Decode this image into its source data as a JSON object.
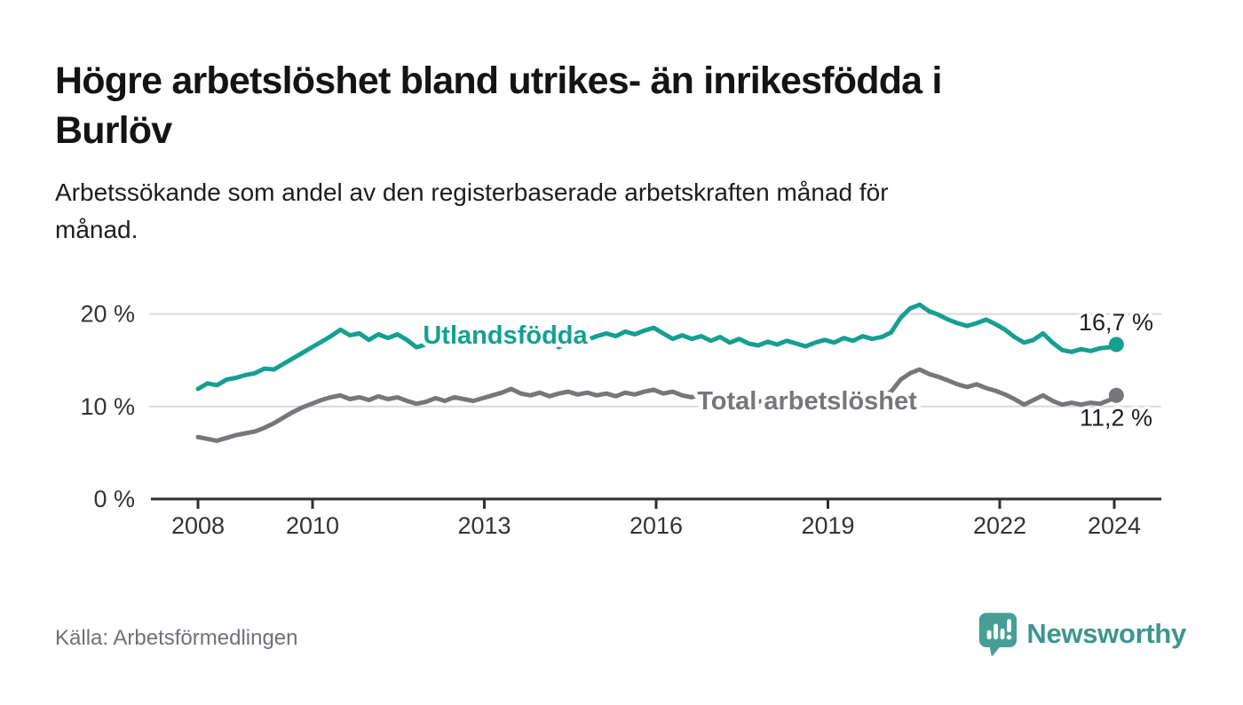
{
  "header": {
    "title_lines": [
      "Högre arbetslöshet bland utrikes- än inrikesfödda i",
      "Burlöv"
    ],
    "subtitle_lines": [
      "Arbetssökande som andel av den registerbaserade arbetskraften månad för",
      "månad."
    ]
  },
  "footer": {
    "source": "Källa: Arbetsförmedlingen",
    "brand": "Newsworthy",
    "brand_color": "#3b968e",
    "logo_icon": "speech-bubble-bar-chart-icon"
  },
  "colors": {
    "foreign_born_line": "#14a091",
    "total_line": "#76777a",
    "gridline": "#d9d9d9",
    "axis": "#2f2f2f",
    "tick_label": "#333333",
    "end_label": "#1d1d1d"
  },
  "chart_data": {
    "type": "line",
    "title": "Högre arbetslöshet bland utrikes- än inrikesfödda i Burlöv",
    "subtitle": "Arbetssökande som andel av den registerbaserade arbetskraften månad för månad.",
    "xlabel": "",
    "ylabel": "",
    "x_range": [
      2008.0,
      2024.083
    ],
    "x_ticks": [
      2008,
      2010,
      2013,
      2016,
      2019,
      2022,
      2024
    ],
    "y_ticks": [
      0,
      10,
      20
    ],
    "y_tick_suffix": " %",
    "ylim": [
      0,
      22
    ],
    "grid": "horizontal",
    "legend_position": "inline-labels",
    "series": [
      {
        "name": "Utlandsfödda",
        "color": "#14a091",
        "end_value": 16.7,
        "end_label": "16,7 %",
        "values": [
          11.9,
          12.5,
          12.3,
          12.9,
          13.1,
          13.4,
          13.6,
          14.1,
          14.0,
          14.6,
          15.2,
          15.8,
          16.4,
          17.0,
          17.6,
          18.3,
          17.7,
          17.9,
          17.2,
          17.8,
          17.4,
          17.8,
          17.2,
          16.4,
          16.7,
          17.4,
          17.1,
          17.7,
          17.9,
          17.5,
          17.8,
          17.5,
          18.0,
          17.6,
          17.9,
          17.4,
          17.6,
          17.1,
          16.4,
          16.9,
          17.4,
          17.2,
          17.6,
          17.9,
          17.6,
          18.1,
          17.8,
          18.2,
          18.5,
          17.9,
          17.3,
          17.7,
          17.3,
          17.6,
          17.1,
          17.5,
          16.9,
          17.3,
          16.8,
          16.6,
          17.0,
          16.7,
          17.1,
          16.8,
          16.5,
          16.9,
          17.2,
          16.9,
          17.4,
          17.1,
          17.6,
          17.3,
          17.5,
          18.0,
          19.6,
          20.6,
          21.0,
          20.3,
          19.9,
          19.4,
          19.0,
          18.7,
          19.0,
          19.4,
          18.9,
          18.3,
          17.5,
          16.9,
          17.2,
          17.9,
          16.9,
          16.1,
          15.9,
          16.2,
          16.0,
          16.3,
          16.4,
          16.7
        ]
      },
      {
        "name": "Total arbetslöshet",
        "color": "#76777a",
        "end_value": 11.2,
        "end_label": "11,2 %",
        "values": [
          6.7,
          6.5,
          6.3,
          6.6,
          6.9,
          7.1,
          7.3,
          7.7,
          8.2,
          8.8,
          9.4,
          9.9,
          10.3,
          10.7,
          11.0,
          11.2,
          10.8,
          11.0,
          10.7,
          11.1,
          10.8,
          11.0,
          10.6,
          10.3,
          10.5,
          10.9,
          10.6,
          11.0,
          10.8,
          10.6,
          10.9,
          11.2,
          11.5,
          11.9,
          11.4,
          11.2,
          11.5,
          11.1,
          11.4,
          11.6,
          11.3,
          11.5,
          11.2,
          11.4,
          11.1,
          11.5,
          11.3,
          11.6,
          11.8,
          11.4,
          11.6,
          11.2,
          11.0,
          11.3,
          10.9,
          11.1,
          10.8,
          11.0,
          10.7,
          10.5,
          10.8,
          10.5,
          10.9,
          10.6,
          10.4,
          10.7,
          11.0,
          10.7,
          11.1,
          10.9,
          11.2,
          11.0,
          11.2,
          11.6,
          12.9,
          13.6,
          14.0,
          13.5,
          13.2,
          12.8,
          12.4,
          12.1,
          12.4,
          12.0,
          11.7,
          11.3,
          10.8,
          10.2,
          10.7,
          11.2,
          10.6,
          10.2,
          10.4,
          10.2,
          10.4,
          10.3,
          10.7,
          11.2
        ]
      }
    ]
  }
}
